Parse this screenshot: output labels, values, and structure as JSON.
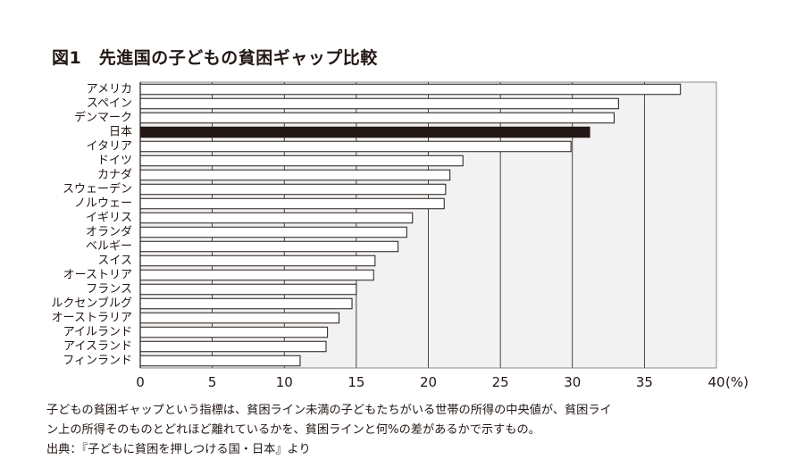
{
  "title": "図1　先進国の子どもの貧困ギャップ比較",
  "chart_data": {
    "type": "bar",
    "orientation": "horizontal",
    "categories": [
      "アメリカ",
      "スペイン",
      "デンマーク",
      "日本",
      "イタリア",
      "ドイツ",
      "カナダ",
      "スウェーデン",
      "ノルウェー",
      "イギリス",
      "オランダ",
      "ベルギー",
      "スイス",
      "オーストリア",
      "フランス",
      "ルクセンブルグ",
      "オーストラリア",
      "アイルランド",
      "アイスランド",
      "フィンランド"
    ],
    "values": [
      37.5,
      33.2,
      32.9,
      31.2,
      29.9,
      22.4,
      21.5,
      21.2,
      21.1,
      18.9,
      18.5,
      17.9,
      16.3,
      16.2,
      15.0,
      14.7,
      13.8,
      13.0,
      12.9,
      11.1
    ],
    "highlight": "日本",
    "xlim": [
      0,
      40
    ],
    "xticks": [
      "0",
      "5",
      "10",
      "15",
      "20",
      "25",
      "30",
      "35",
      "40"
    ],
    "xunit": "(%)",
    "grid": "vertical",
    "colors": {
      "bar": "#ffffff",
      "highlight": "#231815",
      "plot_bg": "#f2f2f2",
      "grid": "#231815"
    }
  },
  "caption": {
    "line1": "子どもの貧困ギャップという指標は、貧困ライン未満の子どもたちがいる世帯の所得の中央値が、貧困ライ",
    "line2": "ン上の所得そのものとどれほど離れているかを、貧困ラインと何%の差があるかで示すもの。"
  },
  "source": "出典：『子どもに貧困を押しつける国・日本』より"
}
